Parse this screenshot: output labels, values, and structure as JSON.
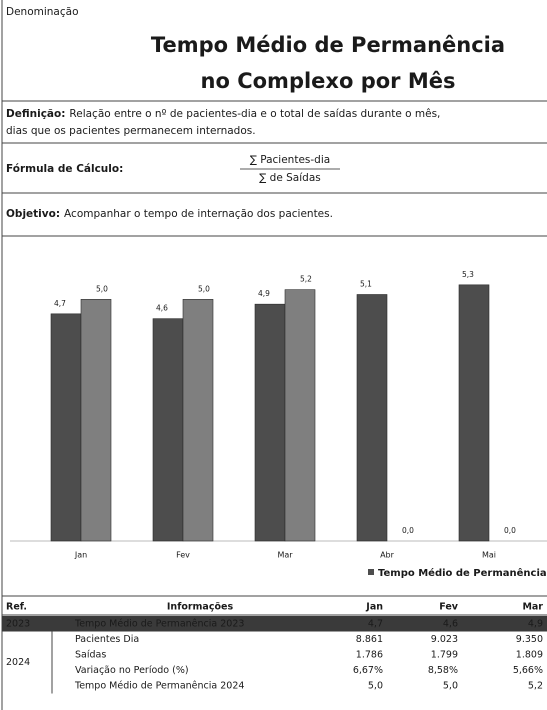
{
  "header": {
    "label": "Denominação",
    "title": [
      "Tempo Médio de Permanência",
      "no Complexo por Mês"
    ]
  },
  "definition": {
    "label": "Definição:",
    "text": [
      "Relação entre o nº de pacientes-dia e o total de saídas durante o mês,",
      "dias que os pacientes permanecem internados."
    ]
  },
  "formula": {
    "label": "Fórmula de Cálculo:",
    "numerator": "∑ Pacientes-dia",
    "denominator": "∑ de Saídas"
  },
  "objective": {
    "label": "Objetivo:",
    "text": "Acompanhar o tempo de internação dos pacientes."
  },
  "chart_data": {
    "type": "bar",
    "categories": [
      "Jan",
      "Fev",
      "Mar",
      "Abr",
      "Mai"
    ],
    "series": [
      {
        "name": "Tempo Médio de Permanência 2023",
        "color": "#4d4d4d",
        "values": [
          4.7,
          4.6,
          4.9,
          5.1,
          5.3
        ],
        "value_labels": [
          "4,7",
          "4,6",
          "4,9",
          "5,1",
          "5,3"
        ]
      },
      {
        "color": "#7f7f7f",
        "values": [
          5.0,
          5.0,
          5.2,
          0.0,
          0.0
        ],
        "value_labels": [
          "5,0",
          "5,0",
          "5,2",
          "0,0",
          "0,0"
        ]
      }
    ],
    "ylim": [
      0,
      6
    ]
  },
  "table": {
    "header": [
      "Ref.",
      "Informações",
      "Jan",
      "Fev",
      "Mar"
    ],
    "groups": [
      {
        "ref": "2023",
        "rows": [
          [
            "Tempo Médio de Permanência 2023",
            "4,7",
            "4,6",
            "4,9"
          ]
        ]
      },
      {
        "ref": "2024",
        "rows": [
          [
            "Pacientes Dia",
            "8.861",
            "9.023",
            "9.350"
          ],
          [
            "Saídas",
            "1.786",
            "1.799",
            "1.809"
          ],
          [
            "Variação no Período (%)",
            "6,67%",
            "8,58%",
            "5,66%"
          ],
          [
            "Tempo Médio de Permanência 2024",
            "5,0",
            "5,0",
            "5,2"
          ]
        ]
      }
    ]
  }
}
